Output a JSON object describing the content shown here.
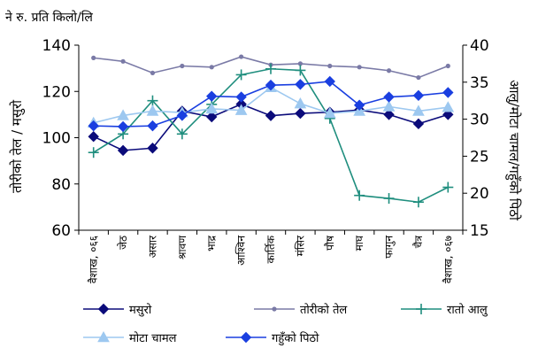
{
  "chart_data": {
    "type": "line",
    "unit_label": "ने रु. प्रति किलो/लि",
    "categories": [
      "वैशाख, ०६६",
      "जेठ",
      "असार",
      "श्रावण",
      "भाद्र",
      "आश्विन",
      "कार्तिक",
      "मंसिर",
      "पौष",
      "माघ",
      "फागुन",
      "चैत्र",
      "वैशाख, ०६७"
    ],
    "y_left": {
      "label": "तोरीको तेल / मसुरो",
      "min": 60,
      "max": 140,
      "ticks": [
        60,
        80,
        100,
        120,
        140
      ]
    },
    "y_right": {
      "label": "आलु/मोटा चामल/गहुँको पिठो",
      "min": 15,
      "max": 40,
      "ticks": [
        15,
        20,
        25,
        30,
        35,
        40
      ]
    },
    "series": [
      {
        "name": "मसुरो",
        "axis": "left",
        "color": "#0b0b7a",
        "marker": "diamond",
        "values": [
          100.5,
          94.5,
          95.5,
          111.5,
          109,
          114.5,
          109.5,
          110.5,
          111,
          112,
          110,
          106,
          110
        ]
      },
      {
        "name": "तोरीको तेल",
        "axis": "left",
        "color": "#7a7aa6",
        "marker": "dot",
        "values": [
          134.5,
          133,
          128,
          131,
          130.5,
          135,
          131.5,
          132,
          131,
          130.5,
          129,
          126,
          131
        ]
      },
      {
        "name": "रातो आलु",
        "axis": "right",
        "color": "#1f8e7e",
        "marker": "plus",
        "values": [
          25.5,
          28,
          32.5,
          28,
          32,
          36,
          36.8,
          36.6,
          30.1,
          19.7,
          19.3,
          18.8,
          20.8
        ]
      },
      {
        "name": "मोटा चामल",
        "axis": "right",
        "color": "#9dc8f0",
        "marker": "triangle",
        "values": [
          29.5,
          30.5,
          31.1,
          30.9,
          31.4,
          31.2,
          34.3,
          32.1,
          30.8,
          31.1,
          31.7,
          31.1,
          31.6
        ]
      },
      {
        "name": "गहुँको पिठो",
        "axis": "right",
        "color": "#1a3fe0",
        "marker": "diamond",
        "values": [
          29.1,
          29.0,
          29.1,
          30.5,
          33.1,
          33.0,
          34.6,
          34.7,
          35.1,
          31.9,
          33.0,
          33.2,
          33.6
        ]
      }
    ],
    "legend_position": "bottom",
    "grid": false
  }
}
